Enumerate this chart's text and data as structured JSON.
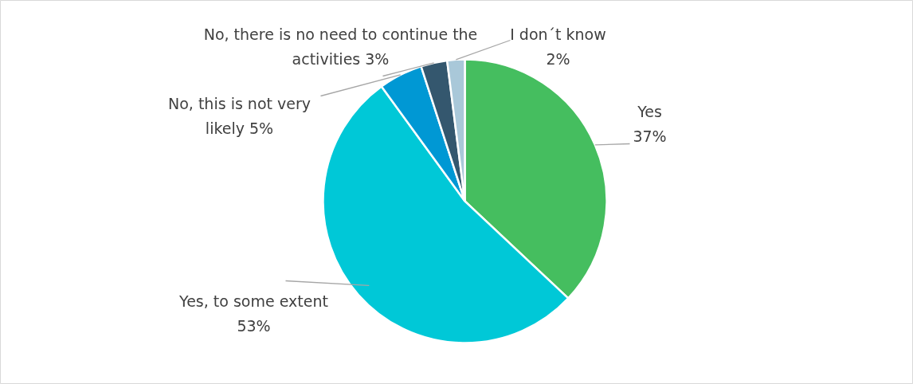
{
  "chart_data": {
    "type": "pie",
    "categories": [
      "Yes",
      "Yes, to some extent",
      "No, this is not very likely",
      "No, there is no need to continue the activities",
      "I don´t know"
    ],
    "values": [
      37,
      53,
      5,
      3,
      2
    ],
    "value_labels": [
      "37%",
      "53%",
      "5%",
      "3%",
      "2%"
    ],
    "colors": [
      "#45be5f",
      "#00c8d7",
      "#0098d4",
      "#34576e",
      "#a9c8d9"
    ]
  }
}
